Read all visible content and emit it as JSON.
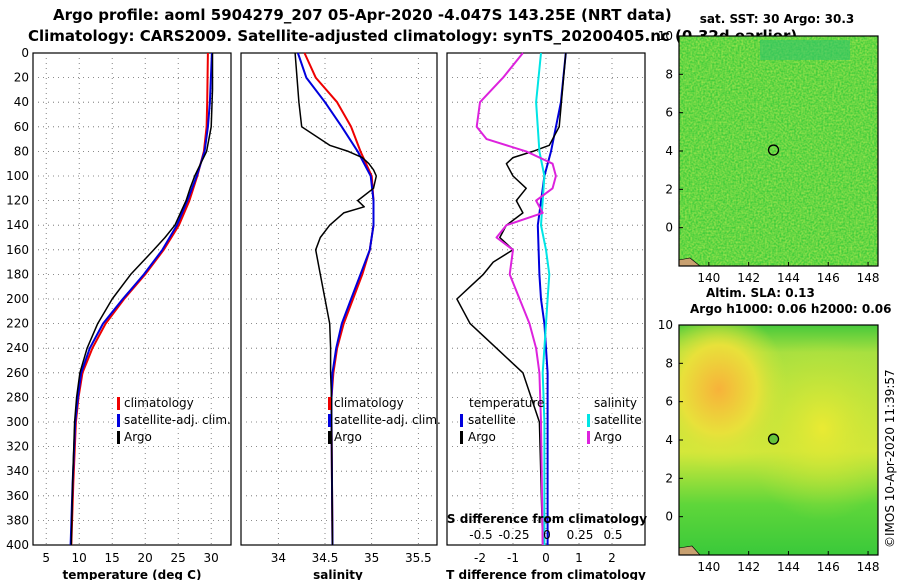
{
  "title_line1": "Argo profile: aoml 5904279_207 05-Apr-2020 -4.047S 143.25E (NRT data)",
  "title_line2": "Climatology: CARS2009. Satellite-adjusted climatology: synTS_20200405.nc (0.32d earlier)",
  "credit": "©IMOS 10-Apr-2020 11:39:57",
  "colors": {
    "climatology": "#ee0000",
    "satellite": "#0000dd",
    "argo": "#000000",
    "sal_sat": "#00e5e5",
    "sal_argo": "#dd22dd",
    "grid": "#555555"
  },
  "chart_data": [
    {
      "id": "temperature",
      "type": "line",
      "xlabel": "temperature (deg C)",
      "ylabel": "",
      "xlim": [
        3,
        33
      ],
      "ylim": [
        0,
        400
      ],
      "y_inverted": true,
      "xticks": [
        5,
        10,
        15,
        20,
        25,
        30
      ],
      "yticks": [
        0,
        20,
        40,
        60,
        80,
        100,
        120,
        140,
        160,
        180,
        200,
        220,
        240,
        260,
        280,
        300,
        320,
        340,
        360,
        380,
        400
      ],
      "legend": [
        "climatology",
        "satellite-adj. clim.",
        "Argo"
      ],
      "series": [
        {
          "name": "climatology",
          "color": "#ee0000",
          "depth": [
            0,
            40,
            60,
            80,
            100,
            120,
            140,
            160,
            180,
            200,
            220,
            240,
            260,
            280,
            300,
            350,
            400
          ],
          "values": [
            29.5,
            29.4,
            29.3,
            28.9,
            27.9,
            26.7,
            25.1,
            22.8,
            20.0,
            16.8,
            14.0,
            12.0,
            10.5,
            9.9,
            9.5,
            9.1,
            8.8
          ]
        },
        {
          "name": "satellite-adj. clim.",
          "color": "#0000dd",
          "depth": [
            0,
            40,
            60,
            80,
            100,
            120,
            140,
            160,
            180,
            200,
            220,
            240,
            260,
            280,
            300,
            350,
            400
          ],
          "values": [
            30.1,
            29.8,
            29.5,
            29.0,
            27.8,
            26.4,
            24.8,
            22.6,
            19.8,
            16.6,
            13.6,
            11.6,
            10.3,
            9.8,
            9.4,
            9.0,
            8.7
          ]
        },
        {
          "name": "Argo",
          "color": "#000000",
          "depth": [
            0,
            30,
            60,
            80,
            90,
            100,
            110,
            120,
            140,
            150,
            160,
            180,
            200,
            220,
            240,
            260,
            280,
            300,
            350,
            400
          ],
          "values": [
            30.2,
            30.2,
            30.0,
            29.3,
            28.4,
            27.5,
            26.8,
            26.2,
            24.5,
            23.0,
            21.3,
            17.8,
            15.0,
            12.8,
            11.2,
            10.1,
            9.6,
            9.3,
            9.0,
            8.8
          ]
        }
      ]
    },
    {
      "id": "salinity",
      "type": "line",
      "xlabel": "salinity",
      "ylabel": "",
      "xlim": [
        33.6,
        35.7
      ],
      "ylim": [
        0,
        400
      ],
      "y_inverted": true,
      "xticks": [
        34,
        34.5,
        35,
        35.5
      ],
      "legend": [
        "climatology",
        "satellite-adj. clim.",
        "Argo"
      ],
      "series": [
        {
          "name": "climatology",
          "color": "#ee0000",
          "depth": [
            0,
            20,
            40,
            60,
            80,
            100,
            120,
            140,
            160,
            180,
            200,
            220,
            240,
            260,
            280,
            300,
            400
          ],
          "values": [
            34.28,
            34.4,
            34.63,
            34.78,
            34.88,
            35.0,
            35.02,
            35.02,
            34.98,
            34.9,
            34.8,
            34.7,
            34.63,
            34.59,
            34.57,
            34.57,
            34.58
          ]
        },
        {
          "name": "satellite-adj. clim.",
          "color": "#0000dd",
          "depth": [
            0,
            20,
            40,
            60,
            80,
            100,
            120,
            140,
            160,
            180,
            200,
            220,
            240,
            260,
            280,
            300,
            400
          ],
          "values": [
            34.21,
            34.3,
            34.5,
            34.68,
            34.85,
            34.99,
            35.02,
            35.02,
            34.98,
            34.88,
            34.78,
            34.68,
            34.62,
            34.58,
            34.57,
            34.57,
            34.58
          ]
        },
        {
          "name": "Argo",
          "color": "#000000",
          "depth": [
            0,
            20,
            40,
            60,
            75,
            80,
            85,
            90,
            95,
            100,
            110,
            120,
            125,
            130,
            140,
            150,
            160,
            180,
            200,
            220,
            240,
            260,
            280,
            300,
            400
          ],
          "values": [
            34.18,
            34.2,
            34.22,
            34.25,
            34.55,
            34.75,
            34.9,
            34.97,
            35.02,
            35.05,
            35.02,
            34.85,
            34.92,
            34.7,
            34.55,
            34.45,
            34.4,
            34.45,
            34.5,
            34.55,
            34.56,
            34.56,
            34.57,
            34.57,
            34.58
          ]
        }
      ]
    },
    {
      "id": "difference",
      "type": "line",
      "xlabel": "T difference from climatology",
      "xlabel_top": "S difference from climatology",
      "ylabel": "",
      "xlim": [
        -3,
        3
      ],
      "ylim": [
        0,
        400
      ],
      "y_inverted": true,
      "xticks": [
        -2,
        -1,
        0,
        1,
        2
      ],
      "top_tick_labels": [
        "-0.5",
        "-0.25",
        "0",
        "0.25",
        "0.5"
      ],
      "legend_titles": [
        "temperature",
        "salinity"
      ],
      "legend_t": [
        "satellite",
        "Argo"
      ],
      "legend_s": [
        "satellite",
        "Argo"
      ],
      "series": [
        {
          "name": "T satellite",
          "color": "#0000dd",
          "depth": [
            0,
            40,
            80,
            100,
            140,
            180,
            200,
            220,
            260,
            300,
            400
          ],
          "values": [
            0.6,
            0.45,
            0.15,
            -0.05,
            -0.25,
            -0.2,
            -0.15,
            -0.05,
            0.05,
            0.05,
            0.05
          ]
        },
        {
          "name": "T Argo",
          "color": "#000000",
          "depth": [
            0,
            60,
            75,
            80,
            85,
            90,
            100,
            110,
            120,
            130,
            140,
            150,
            160,
            170,
            180,
            190,
            200,
            210,
            220,
            240,
            260,
            300,
            400
          ],
          "values": [
            0.6,
            0.4,
            0.1,
            -0.4,
            -1.0,
            -1.2,
            -1.0,
            -0.6,
            -0.9,
            -0.7,
            -1.2,
            -1.4,
            -1.0,
            -1.6,
            -1.9,
            -2.3,
            -2.7,
            -2.5,
            -2.3,
            -1.5,
            -0.7,
            -0.2,
            -0.1
          ]
        },
        {
          "name": "S satellite",
          "color": "#00e5e5",
          "depth": [
            0,
            40,
            80,
            100,
            140,
            160,
            180,
            200,
            240,
            260,
            300,
            400
          ],
          "values": [
            -0.15,
            -0.3,
            -0.2,
            -0.05,
            -0.15,
            0.0,
            0.1,
            0.05,
            -0.05,
            -0.1,
            -0.05,
            -0.05
          ]
        },
        {
          "name": "S Argo",
          "color": "#dd22dd",
          "depth": [
            0,
            20,
            40,
            60,
            70,
            80,
            90,
            100,
            110,
            120,
            130,
            140,
            150,
            160,
            180,
            200,
            220,
            240,
            260,
            300,
            400
          ],
          "values": [
            -0.7,
            -1.3,
            -2.0,
            -2.1,
            -1.8,
            -0.6,
            0.2,
            0.3,
            0.2,
            -0.3,
            -0.1,
            -1.2,
            -1.5,
            -1.0,
            -1.1,
            -0.8,
            -0.5,
            -0.3,
            -0.2,
            -0.15,
            -0.1
          ]
        }
      ]
    },
    {
      "id": "sst_map",
      "type": "heatmap",
      "title": "sat. SST: 30 Argo: 30.3",
      "xlim": [
        138.5,
        148.5
      ],
      "ylim": [
        -2,
        10
      ],
      "xticks": [
        140,
        142,
        144,
        146,
        148
      ],
      "yticks": [
        0,
        2,
        4,
        6,
        8,
        10
      ],
      "marker": [
        143.25,
        4.05
      ]
    },
    {
      "id": "sla_map",
      "type": "heatmap",
      "title": "Altim. SLA: 0.13",
      "subtitle": "Argo h1000: 0.06 h2000: 0.06",
      "xlim": [
        138.5,
        148.5
      ],
      "ylim": [
        -2,
        10
      ],
      "xticks": [
        140,
        142,
        144,
        146,
        148
      ],
      "yticks": [
        0,
        2,
        4,
        6,
        8,
        10
      ],
      "marker": [
        143.25,
        4.05
      ]
    }
  ]
}
